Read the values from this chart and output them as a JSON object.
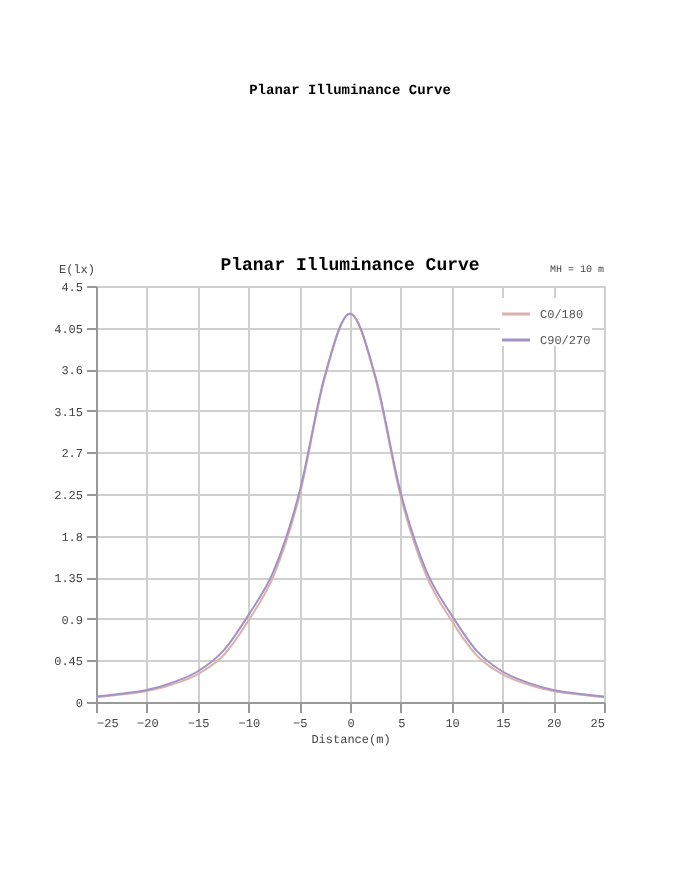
{
  "chart_data": {
    "type": "line",
    "title": "Planar Illuminance Curve",
    "xlabel": "Distance(m)",
    "ylabel": "E(lx)",
    "annotations": [
      "Planar Illuminance Curve",
      "MH = 10 m"
    ],
    "x": [
      -25,
      -22.5,
      -20,
      -17.5,
      -15,
      -12.5,
      -10,
      -7.5,
      -5,
      -2.5,
      0,
      2.5,
      5,
      7.5,
      10,
      12.5,
      15,
      17.5,
      20,
      22.5,
      25
    ],
    "series": [
      {
        "name": "C0/180",
        "color": "#d9b3ad",
        "values": [
          0.05,
          0.08,
          0.12,
          0.19,
          0.3,
          0.5,
          0.88,
          1.37,
          2.22,
          3.5,
          4.2,
          3.5,
          2.22,
          1.37,
          0.88,
          0.5,
          0.3,
          0.19,
          0.12,
          0.08,
          0.05
        ]
      },
      {
        "name": "C90/270",
        "color": "#a592c4",
        "values": [
          0.06,
          0.09,
          0.13,
          0.21,
          0.33,
          0.55,
          0.94,
          1.42,
          2.26,
          3.52,
          4.2,
          3.52,
          2.26,
          1.42,
          0.94,
          0.55,
          0.33,
          0.21,
          0.13,
          0.09,
          0.06
        ]
      }
    ],
    "xlim": [
      -25,
      25
    ],
    "xticks": [
      -25,
      -20,
      -15,
      -10,
      -5,
      0,
      5,
      10,
      15,
      20,
      25
    ],
    "ylim": [
      0,
      4.5
    ],
    "yticks": [
      0,
      0.45,
      0.9,
      1.35,
      1.8,
      2.25,
      2.7,
      3.15,
      3.6,
      4.05,
      4.5
    ],
    "grid": true,
    "legend": "top right",
    "marker": "none",
    "line_style": "solid"
  }
}
